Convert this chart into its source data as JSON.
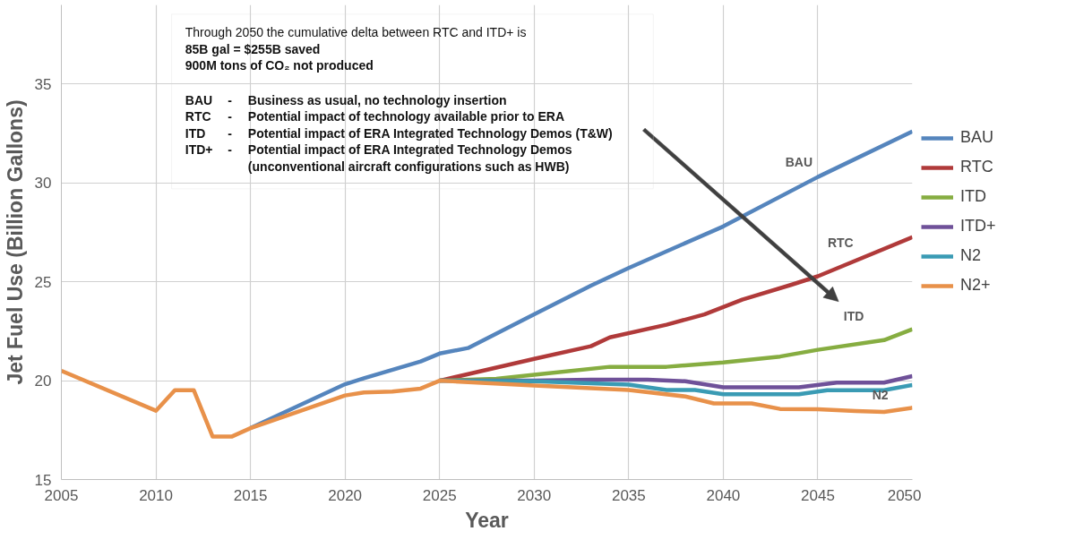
{
  "chart_data": {
    "type": "line",
    "xlabel": "Year",
    "ylabel": "Jet Fuel Use (Billion Gallons)",
    "xlim": [
      2005,
      2050
    ],
    "xticks": [
      2005,
      2010,
      2015,
      2020,
      2025,
      2030,
      2035,
      2040,
      2045,
      2050
    ],
    "ylim": [
      15,
      39
    ],
    "yticks": [
      15,
      20,
      25,
      30,
      35
    ],
    "grid": true,
    "legend": "right",
    "marker": "none",
    "line_style": "solid",
    "series": [
      {
        "name": "BAU",
        "color": "#5585bd",
        "x": [
          2015,
          2020,
          2021,
          2024,
          2025,
          2026.5,
          2030,
          2033,
          2035,
          2040,
          2045,
          2050
        ],
        "values": [
          17.6,
          19.82,
          20.12,
          20.97,
          21.37,
          21.65,
          23.35,
          24.8,
          25.7,
          27.8,
          30.3,
          32.6
        ]
      },
      {
        "name": "RTC",
        "color": "#b03a3a",
        "x": [
          2025,
          2030,
          2033,
          2034,
          2037,
          2039,
          2041,
          2043.6,
          2045,
          2050
        ],
        "values": [
          20.0,
          21.1,
          21.74,
          22.19,
          22.83,
          23.35,
          24.1,
          24.85,
          25.28,
          27.26
        ]
      },
      {
        "name": "ITD",
        "color": "#86ad41",
        "x": [
          2025,
          2028,
          2030,
          2034,
          2037,
          2040,
          2043,
          2045,
          2048.5,
          2050
        ],
        "values": [
          20.0,
          20.1,
          20.3,
          20.7,
          20.7,
          20.92,
          21.22,
          21.56,
          22.05,
          22.6
        ]
      },
      {
        "name": "ITD+",
        "color": "#6f5199",
        "x": [
          2025,
          2030,
          2033,
          2036,
          2038,
          2040,
          2044,
          2046,
          2048.5,
          2050
        ],
        "values": [
          20.0,
          20.0,
          20.05,
          20.05,
          19.97,
          19.66,
          19.66,
          19.9,
          19.9,
          20.23
        ]
      },
      {
        "name": "N2",
        "color": "#3a9bb4",
        "x": [
          2025,
          2030,
          2035,
          2037,
          2038.5,
          2040,
          2044,
          2045.5,
          2048.5,
          2050
        ],
        "values": [
          20.0,
          19.97,
          19.8,
          19.53,
          19.53,
          19.31,
          19.31,
          19.52,
          19.52,
          19.78
        ]
      },
      {
        "name": "N2+",
        "color": "#e8914a",
        "x": [
          2005,
          2010,
          2011,
          2012,
          2013,
          2014,
          2015,
          2020,
          2021,
          2022.5,
          2024,
          2025,
          2030,
          2035,
          2038,
          2039.5,
          2041.5,
          2043,
          2045,
          2047,
          2048.5,
          2050
        ],
        "values": [
          20.5,
          18.48,
          19.52,
          19.52,
          17.17,
          17.17,
          17.6,
          19.25,
          19.4,
          19.45,
          19.6,
          20.0,
          19.76,
          19.53,
          19.2,
          18.85,
          18.85,
          18.57,
          18.55,
          18.46,
          18.42,
          18.63
        ]
      }
    ],
    "annotations": [
      "Through 2050 the cumulative delta between RTC and ITD+ is",
      "85B gal = $255B saved",
      "900M tons of CO₂ not produced",
      "BAU\t-\tBusiness as usual, no technology insertion",
      "RTC\t-\tPotential impact of technology available prior to ERA",
      "ITD\t-\tPotential impact of ERA Integrated Technology Demos (T&W)",
      "ITD+\t-\tPotential impact of ERA Integrated Technology Demos",
      "\t\t(unconventional aircraft configurations such as HWB)",
      "BAU",
      "RTC",
      "ITD",
      "N2"
    ]
  }
}
